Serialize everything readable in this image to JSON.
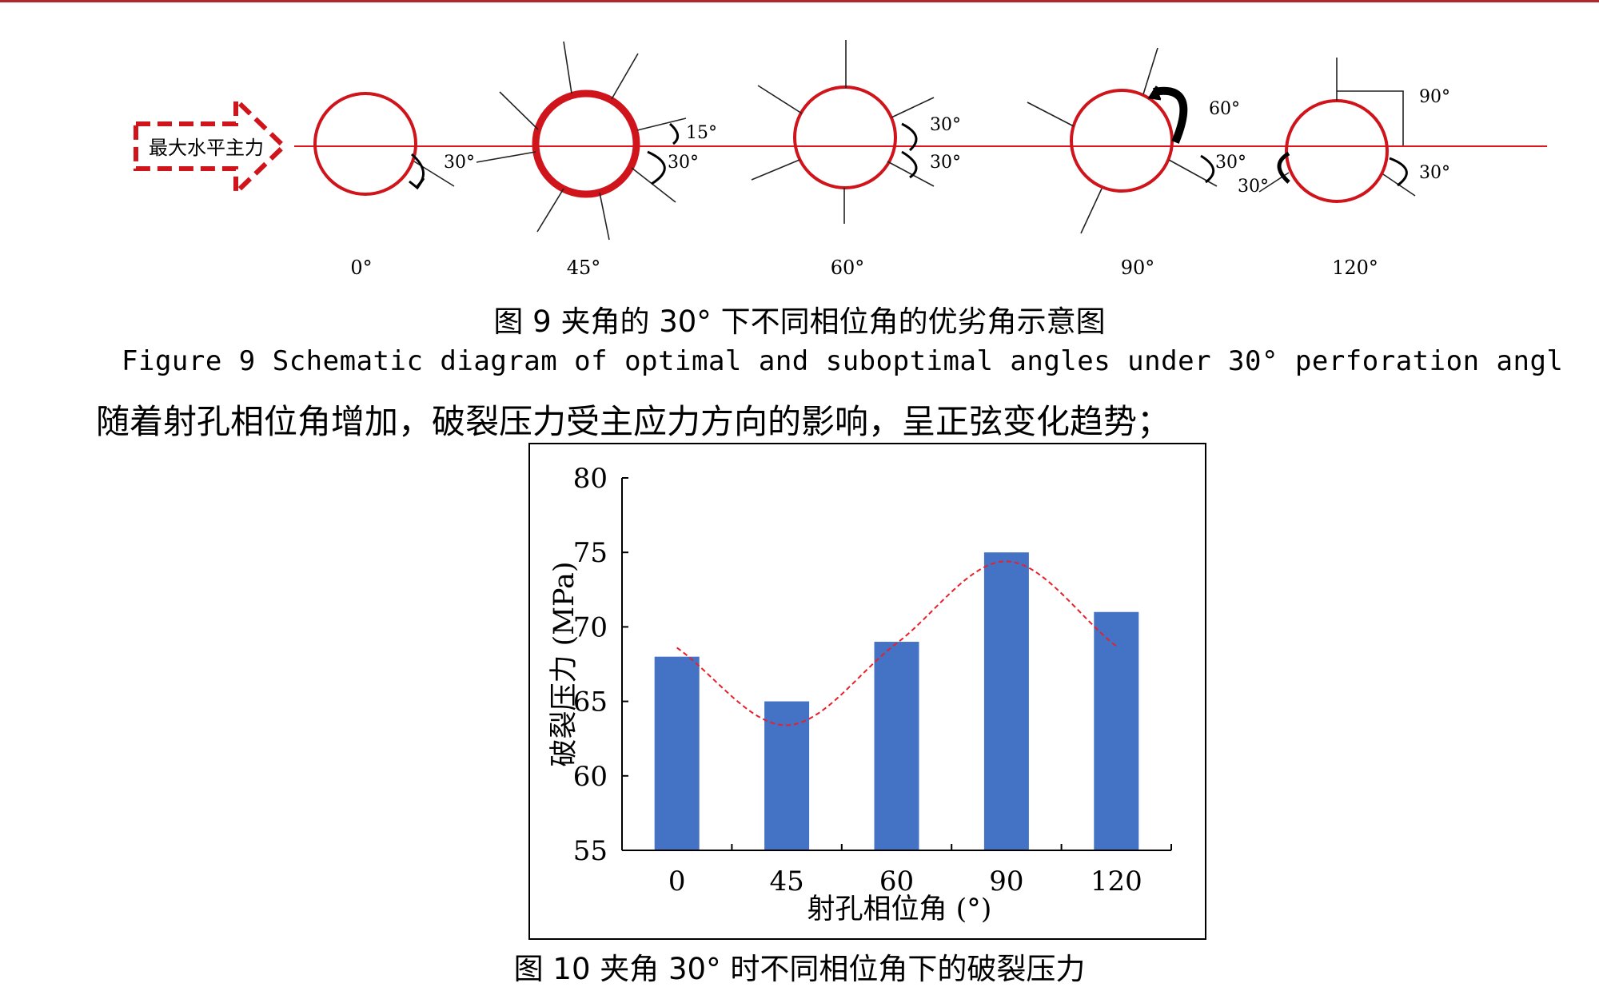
{
  "figure9": {
    "arrow_label": "最大水平主力",
    "phases": [
      {
        "label": "0°",
        "annotations": [
          "30°"
        ]
      },
      {
        "label": "45°",
        "annotations": [
          "15°",
          "30°"
        ]
      },
      {
        "label": "60°",
        "annotations": [
          "30°",
          "30°"
        ]
      },
      {
        "label": "90°",
        "annotations": [
          "60°",
          "30°",
          "30°"
        ]
      },
      {
        "label": "120°",
        "annotations": [
          "90°",
          "30°"
        ]
      }
    ],
    "caption_cn": "图 9 夹角的 30° 下不同相位角的优劣角示意图",
    "caption_en": "Figure 9 Schematic diagram of optimal and suboptimal angles under 30° perforation angl",
    "colors": {
      "circle": "#d0141c",
      "axis_line": "#e0141c",
      "arrow": "#d0141c",
      "spokes": "#222222"
    }
  },
  "body_text": "随着射孔相位角增加，破裂压力受主应力方向的影响，呈正弦变化趋势；",
  "chart_data": {
    "type": "bar",
    "categories": [
      "0",
      "45",
      "60",
      "90",
      "120"
    ],
    "values": [
      68,
      65,
      69,
      75,
      71
    ],
    "trend_line": {
      "style": "dashed",
      "color": "#e8202a",
      "x": [
        0,
        1,
        2,
        3,
        4
      ],
      "y": [
        68.6,
        63.4,
        68.9,
        74.4,
        68.7
      ]
    },
    "ylim": [
      55,
      80
    ],
    "yticks": [
      55,
      60,
      65,
      70,
      75,
      80
    ],
    "xlabel": "射孔相位角 (°)",
    "ylabel": "破裂压力 (MPa)",
    "bar_color": "#4472c4",
    "grid": false
  },
  "figure10": {
    "caption_cn": "图 10 夹角 30° 时不同相位角下的破裂压力"
  }
}
